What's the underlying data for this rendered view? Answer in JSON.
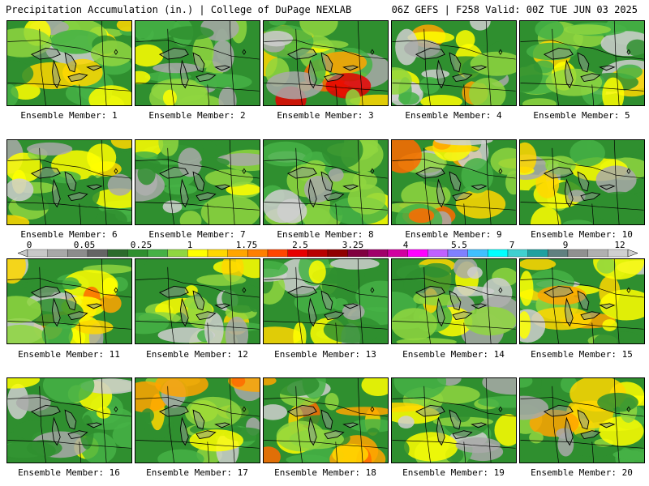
{
  "header": {
    "title_left": "Precipitation Accumulation (in.) | College of DuPage NEXLAB",
    "title_right": "06Z GEFS | F258 Valid: 00Z TUE JUN 03 2025"
  },
  "panels": [
    {
      "label": "Ensemble Member: 1",
      "intensity": 0.55,
      "seed": 1
    },
    {
      "label": "Ensemble Member: 2",
      "intensity": 0.35,
      "seed": 2
    },
    {
      "label": "Ensemble Member: 3",
      "intensity": 0.85,
      "seed": 3
    },
    {
      "label": "Ensemble Member: 4",
      "intensity": 0.7,
      "seed": 4
    },
    {
      "label": "Ensemble Member: 5",
      "intensity": 0.5,
      "seed": 5
    },
    {
      "label": "Ensemble Member: 6",
      "intensity": 0.45,
      "seed": 6
    },
    {
      "label": "Ensemble Member: 7",
      "intensity": 0.35,
      "seed": 7
    },
    {
      "label": "Ensemble Member: 8",
      "intensity": 0.3,
      "seed": 8
    },
    {
      "label": "Ensemble Member: 9",
      "intensity": 0.75,
      "seed": 9
    },
    {
      "label": "Ensemble Member: 10",
      "intensity": 0.5,
      "seed": 10
    },
    {
      "label": "Ensemble Member: 11",
      "intensity": 0.7,
      "seed": 11
    },
    {
      "label": "Ensemble Member: 12",
      "intensity": 0.55,
      "seed": 12
    },
    {
      "label": "Ensemble Member: 13",
      "intensity": 0.45,
      "seed": 13
    },
    {
      "label": "Ensemble Member: 14",
      "intensity": 0.45,
      "seed": 14
    },
    {
      "label": "Ensemble Member: 15",
      "intensity": 0.6,
      "seed": 15
    },
    {
      "label": "Ensemble Member: 16",
      "intensity": 0.45,
      "seed": 16
    },
    {
      "label": "Ensemble Member: 17",
      "intensity": 0.75,
      "seed": 17
    },
    {
      "label": "Ensemble Member: 18",
      "intensity": 0.7,
      "seed": 18
    },
    {
      "label": "Ensemble Member: 19",
      "intensity": 0.45,
      "seed": 19
    },
    {
      "label": "Ensemble Member: 20",
      "intensity": 0.55,
      "seed": 20
    }
  ],
  "legend": {
    "labels": [
      "0",
      "0.05",
      "0.25",
      "1",
      "1.75",
      "2.5",
      "3.25",
      "4",
      "5.5",
      "7",
      "9",
      "12"
    ],
    "colors": [
      "#c8c8c8",
      "#a8a8a8",
      "#8c8c8c",
      "#646464",
      "#2b6b2b",
      "#2f8f2f",
      "#45b145",
      "#8fd640",
      "#ffff00",
      "#ffd700",
      "#ffa500",
      "#ff7f00",
      "#ff4500",
      "#e60000",
      "#b80000",
      "#900000",
      "#800040",
      "#a0006a",
      "#d000a0",
      "#ff00ff",
      "#c060ff",
      "#8080ff",
      "#40c0ff",
      "#00ffff",
      "#40d0d0",
      "#20a0a0",
      "#608080",
      "#909090",
      "#b0b0b0",
      "#d0d0d0"
    ]
  },
  "map_palette": {
    "gray": "#a9a9a9",
    "light_gray": "#cfcfcf",
    "dark_green": "#2b6b2b",
    "green": "#2f8f2f",
    "bright_green": "#45b145",
    "lime": "#8fd640",
    "yellow": "#ffff00",
    "gold": "#ffd700",
    "orange": "#ffa500",
    "dark_orange": "#ff6a00",
    "red": "#e60000",
    "magenta": "#d000a0"
  }
}
